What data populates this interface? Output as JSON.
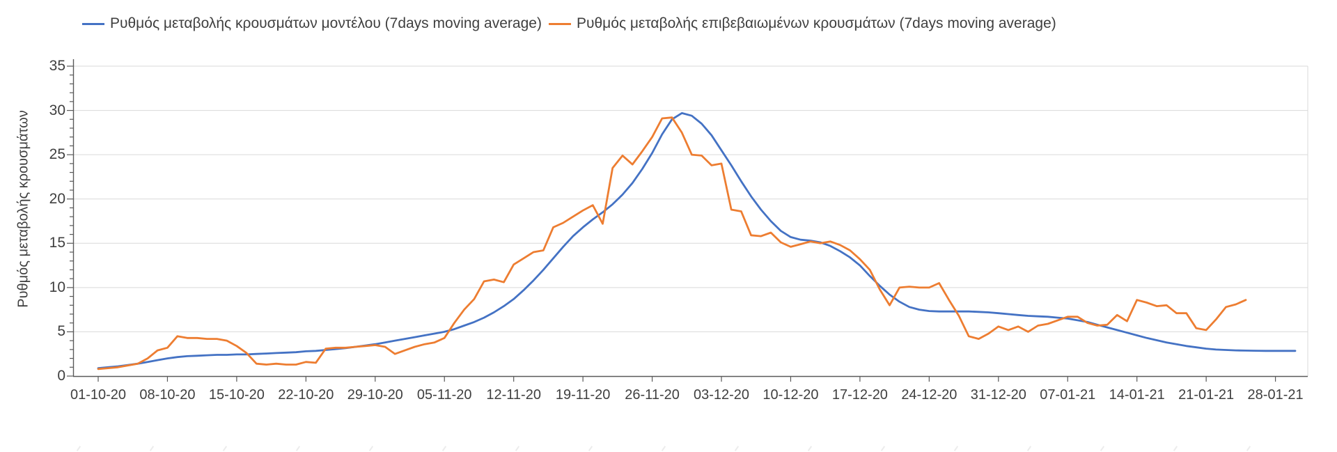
{
  "legend": [
    {
      "label": "Ρυθμός μεταβολής κρουσμάτων μοντέλου (7days moving average)",
      "color": "#4472C4"
    },
    {
      "label": "Ρυθμός μεταβολής επιβεβαιωμένων κρουσμάτων (7days moving average)",
      "color": "#ED7D31"
    }
  ],
  "y_axis": {
    "title": "Ρυθμός μεταβολής κρουσμάτων",
    "min": 0,
    "max": 35,
    "major_step": 5,
    "minor_step": 1,
    "tick_labels": [
      "0",
      "5",
      "10",
      "15",
      "20",
      "25",
      "30",
      "35"
    ]
  },
  "x_axis": {
    "tick_labels": [
      "01-10-20",
      "08-10-20",
      "15-10-20",
      "22-10-20",
      "29-10-20",
      "05-11-20",
      "12-11-20",
      "19-11-20",
      "26-11-20",
      "03-12-20",
      "10-12-20",
      "17-12-20",
      "24-12-20",
      "31-12-20",
      "07-01-21",
      "14-01-21",
      "21-01-21",
      "28-01-21"
    ]
  },
  "colors": {
    "model_line": "#4472C4",
    "confirmed_line": "#ED7D31",
    "grid": "#d9d9d9",
    "axis": "#595959",
    "text": "#3f3f3f"
  },
  "chart_data": {
    "type": "line",
    "title": "",
    "xlabel": "",
    "ylabel": "Ρυθμός μεταβολής κρουσμάτων",
    "ylim": [
      0,
      35
    ],
    "grid": "horizontal",
    "legend_position": "top",
    "x_start_date": "01-10-20",
    "x_frequency": "daily",
    "x_tick_interval_days": 7,
    "series": [
      {
        "name": "Ρυθμός μεταβολής κρουσμάτων μοντέλου (7days moving average)",
        "color": "#4472C4",
        "values": [
          0.9,
          1.0,
          1.1,
          1.25,
          1.4,
          1.6,
          1.8,
          2.0,
          2.15,
          2.25,
          2.3,
          2.35,
          2.4,
          2.4,
          2.45,
          2.45,
          2.5,
          2.55,
          2.6,
          2.65,
          2.7,
          2.8,
          2.85,
          2.95,
          3.05,
          3.15,
          3.3,
          3.45,
          3.6,
          3.8,
          4.0,
          4.2,
          4.4,
          4.6,
          4.8,
          5.0,
          5.3,
          5.7,
          6.1,
          6.6,
          7.2,
          7.9,
          8.7,
          9.7,
          10.8,
          12.0,
          13.3,
          14.6,
          15.8,
          16.8,
          17.7,
          18.5,
          19.4,
          20.5,
          21.8,
          23.4,
          25.2,
          27.3,
          29.0,
          29.7,
          29.4,
          28.5,
          27.2,
          25.5,
          23.8,
          22.0,
          20.3,
          18.8,
          17.5,
          16.4,
          15.7,
          15.4,
          15.3,
          15.1,
          14.7,
          14.1,
          13.4,
          12.5,
          11.3,
          10.2,
          9.2,
          8.4,
          7.8,
          7.5,
          7.35,
          7.3,
          7.3,
          7.3,
          7.3,
          7.25,
          7.2,
          7.1,
          7.0,
          6.9,
          6.8,
          6.75,
          6.7,
          6.6,
          6.5,
          6.3,
          6.1,
          5.8,
          5.5,
          5.2,
          4.9,
          4.6,
          4.3,
          4.05,
          3.8,
          3.6,
          3.4,
          3.25,
          3.1,
          3.0,
          2.95,
          2.9,
          2.88,
          2.86,
          2.85,
          2.85,
          2.85,
          2.85
        ]
      },
      {
        "name": "Ρυθμός μεταβολής επιβεβαιωμένων κρουσμάτων (7days moving average)",
        "color": "#ED7D31",
        "values": [
          0.8,
          0.9,
          1.0,
          1.2,
          1.4,
          2.0,
          2.9,
          3.2,
          4.5,
          4.3,
          4.3,
          4.2,
          4.2,
          4.0,
          3.4,
          2.6,
          1.4,
          1.3,
          1.4,
          1.3,
          1.3,
          1.6,
          1.5,
          3.1,
          3.2,
          3.2,
          3.3,
          3.4,
          3.5,
          3.3,
          2.5,
          2.9,
          3.3,
          3.6,
          3.8,
          4.3,
          6.0,
          7.5,
          8.7,
          10.7,
          10.9,
          10.6,
          12.6,
          13.3,
          14.0,
          14.2,
          16.8,
          17.3,
          18.0,
          18.7,
          19.3,
          17.2,
          23.5,
          24.9,
          23.9,
          25.4,
          27.0,
          29.1,
          29.2,
          27.5,
          25.0,
          24.9,
          23.8,
          24.0,
          18.8,
          18.6,
          15.9,
          15.8,
          16.2,
          15.1,
          14.6,
          14.9,
          15.2,
          15.0,
          15.2,
          14.8,
          14.2,
          13.2,
          12.0,
          9.8,
          8.0,
          10.0,
          10.1,
          10.0,
          10.0,
          10.5,
          8.6,
          6.8,
          4.5,
          4.2,
          4.8,
          5.6,
          5.2,
          5.6,
          5.0,
          5.7,
          5.9,
          6.3,
          6.7,
          6.7,
          6.0,
          5.7,
          5.8,
          6.9,
          6.2,
          8.6,
          8.3,
          7.9,
          8.0,
          7.1,
          7.1,
          5.4,
          5.2,
          6.4,
          7.8,
          8.1,
          8.6,
          null,
          null,
          null,
          null,
          null
        ]
      }
    ]
  }
}
